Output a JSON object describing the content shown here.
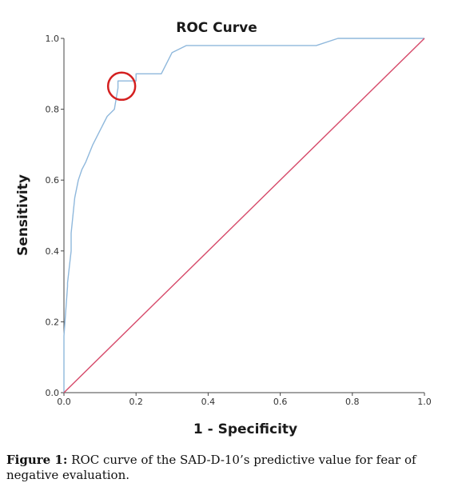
{
  "chart_data": {
    "type": "line",
    "title": "ROC Curve",
    "xlabel": "1 - Specificity",
    "ylabel": "Sensitivity",
    "xlim": [
      0.0,
      1.0
    ],
    "ylim": [
      0.0,
      1.0
    ],
    "x_ticks": [
      "0.0",
      "0.2",
      "0.4",
      "0.6",
      "0.8",
      "1.0"
    ],
    "y_ticks": [
      "0.0",
      "0.2",
      "0.4",
      "0.6",
      "0.8",
      "1.0"
    ],
    "grid": false,
    "series": [
      {
        "color": "#8fb8dc",
        "x": [
          0.0,
          0.0,
          0.01,
          0.01,
          0.02,
          0.02,
          0.03,
          0.04,
          0.05,
          0.06,
          0.08,
          0.1,
          0.12,
          0.14,
          0.15,
          0.15,
          0.2,
          0.2,
          0.27,
          0.3,
          0.34,
          0.7,
          0.76,
          1.0
        ],
        "y": [
          0.0,
          0.16,
          0.3,
          0.31,
          0.4,
          0.45,
          0.55,
          0.6,
          0.63,
          0.65,
          0.7,
          0.74,
          0.78,
          0.8,
          0.86,
          0.88,
          0.88,
          0.9,
          0.9,
          0.96,
          0.98,
          0.98,
          1.0,
          1.0
        ]
      },
      {
        "color": "#d64a6a",
        "x": [
          0.0,
          1.0
        ],
        "y": [
          0.0,
          1.0
        ]
      }
    ],
    "annotations": [
      {
        "type": "circle",
        "x": 0.16,
        "y": 0.865,
        "color": "#d42020"
      }
    ]
  },
  "caption": {
    "label": "Figure 1:",
    "text": " ROC curve of the SAD-D-10’s predictive value for fear of negative evaluation."
  }
}
